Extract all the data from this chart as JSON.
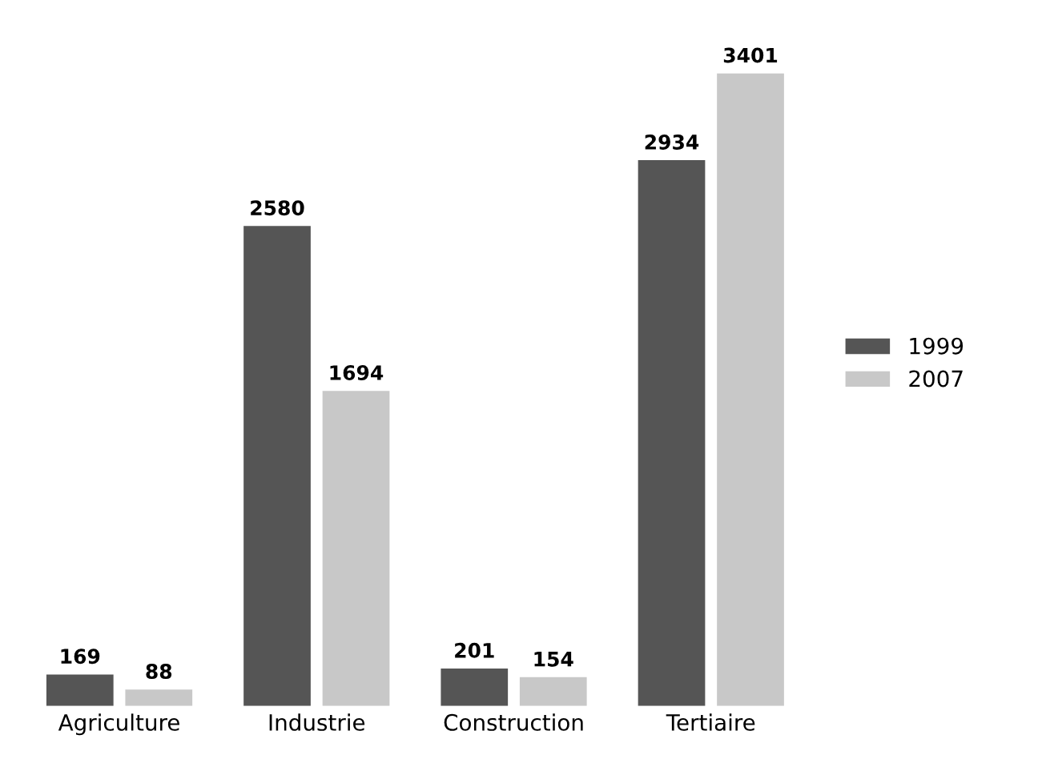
{
  "chart_data": {
    "type": "bar",
    "categories": [
      "Agriculture",
      "Industrie",
      "Construction",
      "Tertiaire"
    ],
    "series": [
      {
        "name": "1999",
        "color": "#555555",
        "values": [
          169,
          2580,
          201,
          2934
        ]
      },
      {
        "name": "2007",
        "color": "#c8c8c8",
        "values": [
          88,
          1694,
          154,
          3401
        ]
      }
    ],
    "data_labels": true,
    "legend": "right",
    "grid": false
  }
}
